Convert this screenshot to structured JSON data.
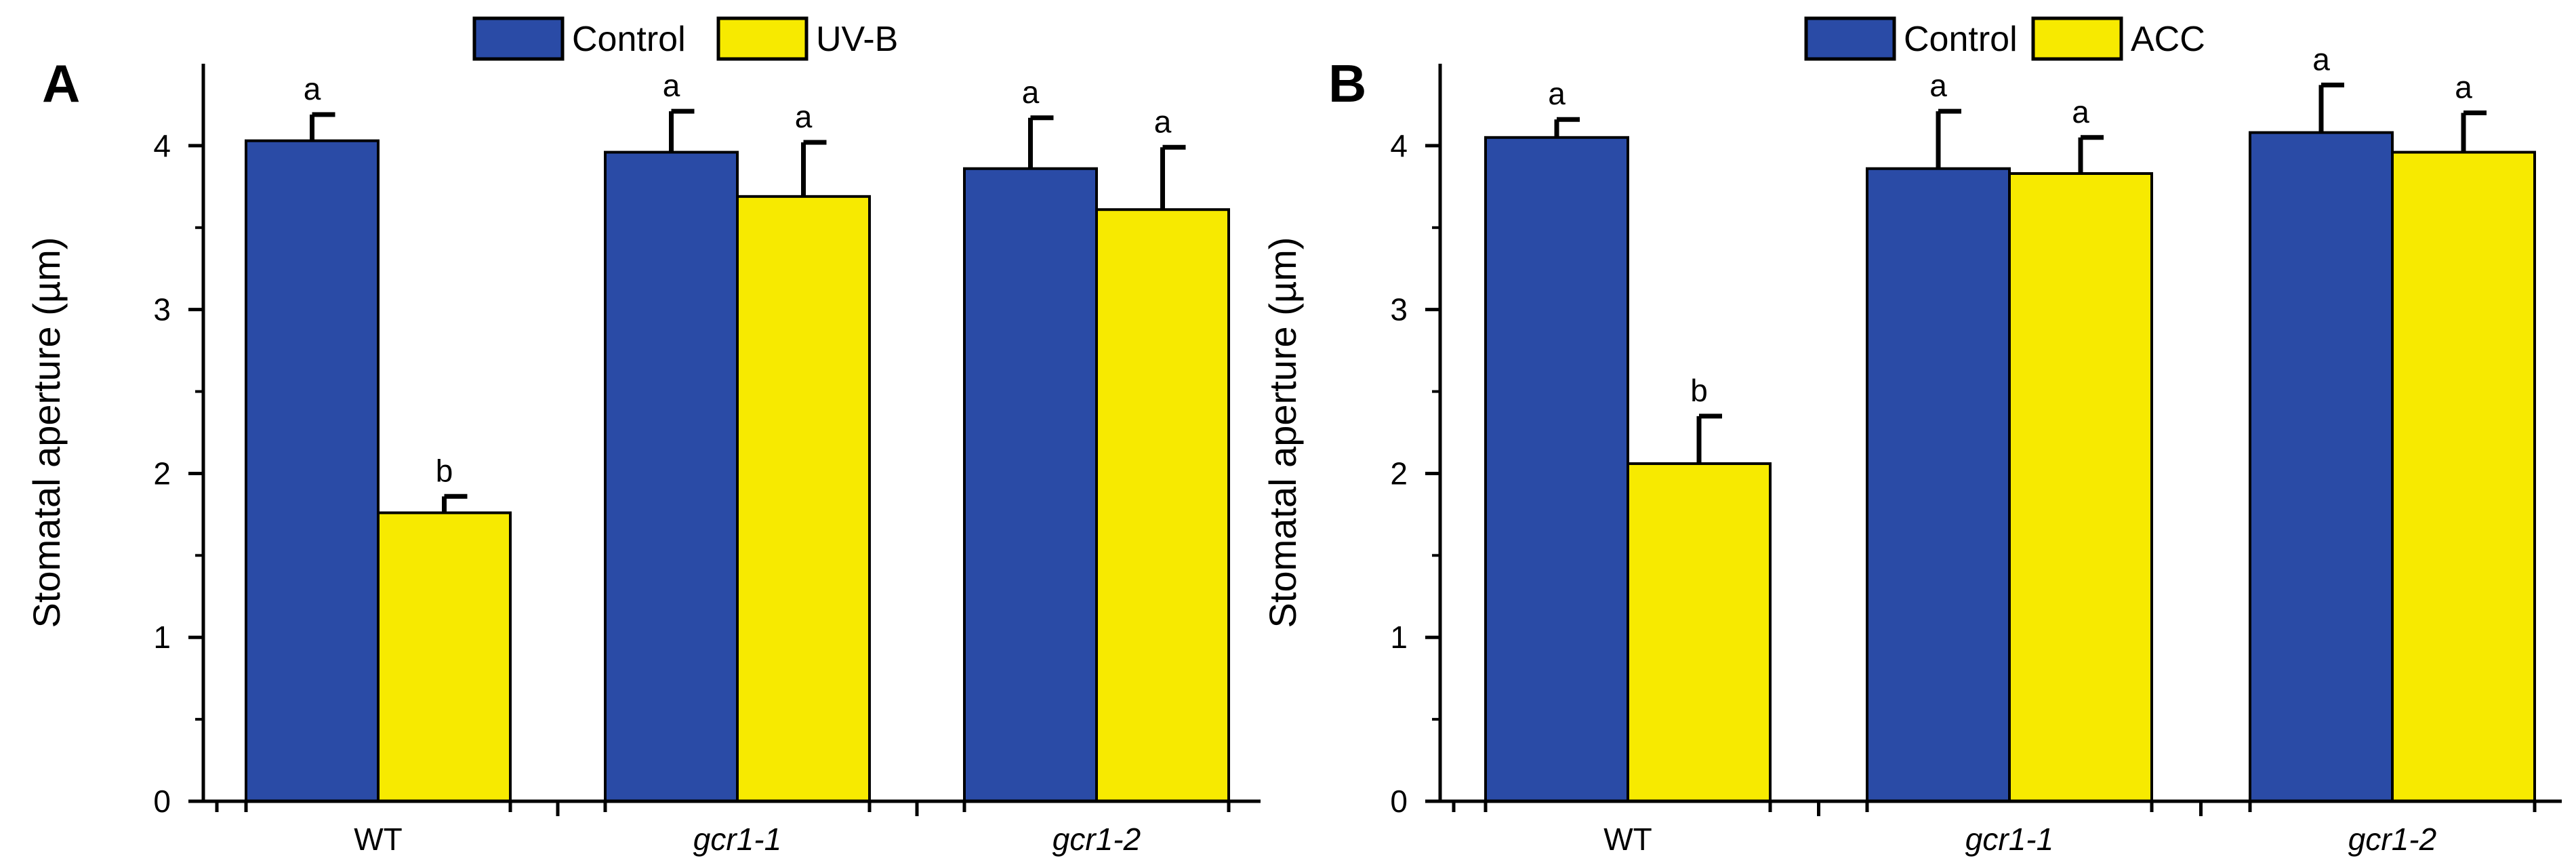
{
  "colors": {
    "control": "#2a4ba6",
    "treatment": "#f7ea00",
    "axis": "#000000"
  },
  "chart_data": [
    {
      "type": "bar",
      "panel_label": "A",
      "categories": [
        "WT",
        "gcr1-1",
        "gcr1-2"
      ],
      "category_italic": [
        false,
        true,
        true
      ],
      "series": [
        {
          "name": "Control",
          "values": [
            4.03,
            3.96,
            3.86
          ],
          "errors": [
            0.16,
            0.25,
            0.31
          ],
          "letters": [
            "a",
            "a",
            "a"
          ]
        },
        {
          "name": "UV-B",
          "values": [
            1.76,
            3.69,
            3.61
          ],
          "errors": [
            0.1,
            0.33,
            0.38
          ],
          "letters": [
            "b",
            "a",
            "a"
          ]
        }
      ],
      "ylabel": "Stomatal aperture (µm)",
      "xlabel": "",
      "ylim": [
        0,
        4.5
      ],
      "yticks": [
        0,
        1,
        2,
        3,
        4
      ],
      "legend": "top-center"
    },
    {
      "type": "bar",
      "panel_label": "B",
      "categories": [
        "WT",
        "gcr1-1",
        "gcr1-2"
      ],
      "category_italic": [
        false,
        true,
        true
      ],
      "series": [
        {
          "name": "Control",
          "values": [
            4.05,
            3.86,
            4.08
          ],
          "errors": [
            0.11,
            0.35,
            0.29
          ],
          "letters": [
            "a",
            "a",
            "a"
          ]
        },
        {
          "name": "ACC",
          "values": [
            2.06,
            3.83,
            3.96
          ],
          "errors": [
            0.29,
            0.22,
            0.24
          ],
          "letters": [
            "b",
            "a",
            "a"
          ]
        }
      ],
      "ylabel": "Stomatal aperture (µm)",
      "xlabel": "",
      "ylim": [
        0,
        4.5
      ],
      "yticks": [
        0,
        1,
        2,
        3,
        4
      ],
      "legend": "top-center"
    }
  ]
}
